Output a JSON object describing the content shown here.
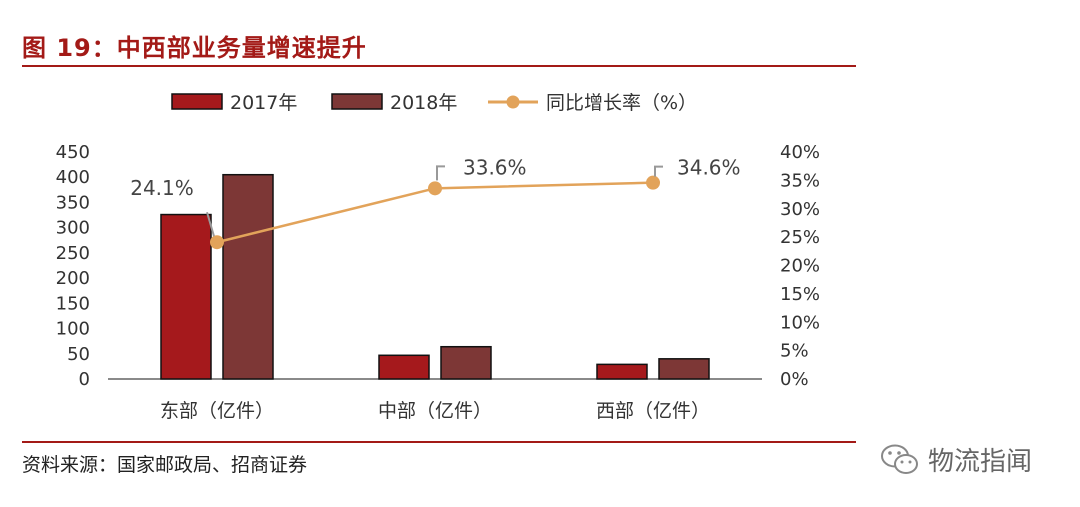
{
  "header": {
    "title": "图 19：中西部业务量增速提升"
  },
  "footer": {
    "source": "资料来源：国家邮政局、招商证券",
    "watermark": "物流指闻",
    "watermark_icon": "wechat-icon"
  },
  "colors": {
    "accent": "#a31a17",
    "series_2017": "#a5191c",
    "series_2018": "#7d3736",
    "growth_line": "#e2a35a"
  },
  "chart_data": {
    "type": "bar",
    "categories": [
      "东部（亿件）",
      "中部（亿件）",
      "西部（亿件）"
    ],
    "series": [
      {
        "name": "2017年",
        "type": "bar",
        "axis": "left",
        "values": [
          326,
          47,
          29
        ]
      },
      {
        "name": "2018年",
        "type": "bar",
        "axis": "left",
        "values": [
          405,
          64,
          40
        ]
      },
      {
        "name": "同比增长率（%）",
        "type": "line",
        "axis": "right",
        "values": [
          24.1,
          33.6,
          34.6
        ]
      }
    ],
    "data_labels": [
      "24.1%",
      "33.6%",
      "34.6%"
    ],
    "y_left": {
      "ylim": [
        0,
        450
      ],
      "ticks": [
        "0",
        "50",
        "100",
        "150",
        "200",
        "250",
        "300",
        "350",
        "400",
        "450"
      ]
    },
    "y_right": {
      "ylim": [
        0,
        40
      ],
      "ticks": [
        "0%",
        "5%",
        "10%",
        "15%",
        "20%",
        "25%",
        "30%",
        "35%",
        "40%"
      ]
    },
    "legend_position": "top",
    "grid": false
  }
}
